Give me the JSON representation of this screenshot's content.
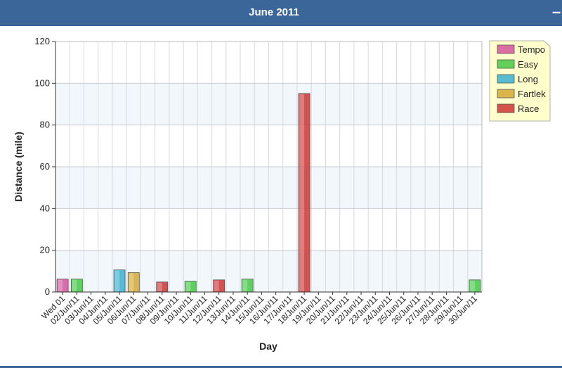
{
  "panel": {
    "title": "June 2011",
    "collapse_symbol": "–"
  },
  "chart_data": {
    "type": "bar",
    "title": "",
    "xlabel": "Day",
    "ylabel": "Distance (mile)",
    "ylim": [
      0,
      120
    ],
    "yticks": [
      0,
      20,
      40,
      60,
      80,
      100,
      120
    ],
    "grid": true,
    "legend_position": "top-right",
    "categories": [
      "Wed 01",
      "02/Jun/11",
      "03/Jun/11",
      "04/Jun/11",
      "05/Jun/11",
      "06/Jun/11",
      "07/Jun/11",
      "08/Jun/11",
      "09/Jun/11",
      "10/Jun/11",
      "11/Jun/11",
      "12/Jun/11",
      "13/Jun/11",
      "14/Jun/11",
      "15/Jun/11",
      "16/Jun/11",
      "17/Jun/11",
      "18/Jun/11",
      "19/Jun/11",
      "20/Jun/11",
      "21/Jun/11",
      "22/Jun/11",
      "23/Jun/11",
      "24/Jun/11",
      "25/Jun/11",
      "26/Jun/11",
      "27/Jun/11",
      "28/Jun/11",
      "29/Jun/11",
      "30/Jun/11"
    ],
    "series": [
      {
        "name": "Tempo",
        "color": "#d6549a",
        "values": [
          6.2,
          0,
          0,
          0,
          0,
          0,
          0,
          0,
          0,
          0,
          0,
          0,
          0,
          0,
          0,
          0,
          0,
          0,
          0,
          0,
          0,
          0,
          0,
          0,
          0,
          0,
          0,
          0,
          0,
          0
        ]
      },
      {
        "name": "Easy",
        "color": "#44c944",
        "values": [
          0,
          6.2,
          0,
          0,
          0,
          0,
          0,
          0,
          0,
          5.2,
          0,
          0,
          0,
          6.2,
          0,
          0,
          0,
          0,
          0,
          0,
          0,
          0,
          0,
          0,
          0,
          0,
          0,
          0,
          0,
          5.8
        ]
      },
      {
        "name": "Long",
        "color": "#3ab0cf",
        "values": [
          0,
          0,
          0,
          0,
          10.6,
          0,
          0,
          0,
          0,
          0,
          0,
          0,
          0,
          0,
          0,
          0,
          0,
          0,
          0,
          0,
          0,
          0,
          0,
          0,
          0,
          0,
          0,
          0,
          0,
          0
        ]
      },
      {
        "name": "Fartlek",
        "color": "#d4a933",
        "values": [
          0,
          0,
          0,
          0,
          0,
          9.3,
          0,
          0,
          0,
          0,
          0,
          0,
          0,
          0,
          0,
          0,
          0,
          0,
          0,
          0,
          0,
          0,
          0,
          0,
          0,
          0,
          0,
          0,
          0,
          0
        ]
      },
      {
        "name": "Race",
        "color": "#cf3434",
        "values": [
          0,
          0,
          0,
          0,
          0,
          0,
          0,
          4.8,
          0,
          0,
          0,
          5.8,
          0,
          0,
          0,
          0,
          0,
          95.1,
          0,
          0,
          0,
          0,
          0,
          0,
          0,
          0,
          0,
          0,
          0,
          0
        ]
      }
    ]
  }
}
